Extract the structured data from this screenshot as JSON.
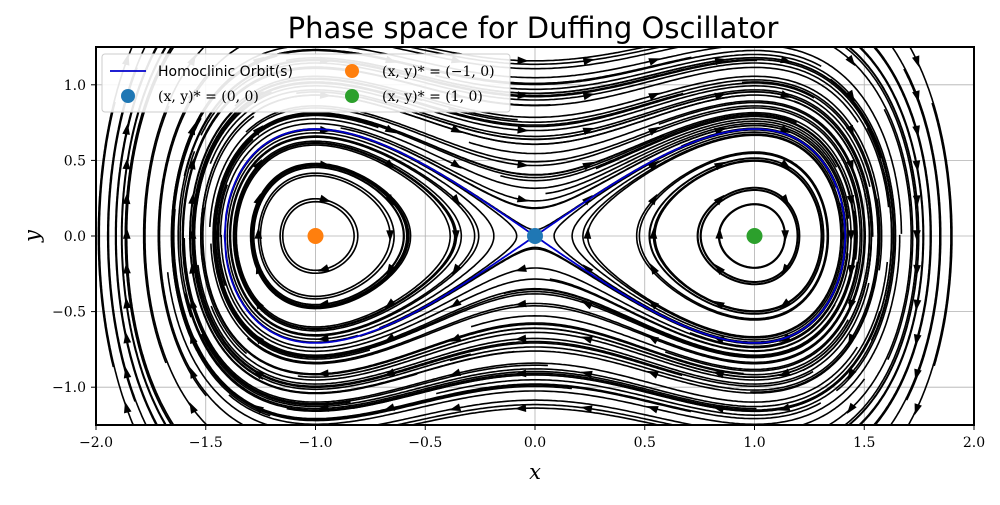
{
  "chart_data": {
    "type": "streamplot",
    "title": "Phase space for Duffing Oscillator",
    "xlabel": "x",
    "ylabel": "y",
    "xlim": [
      -2.0,
      2.0
    ],
    "ylim": [
      -1.25,
      1.25
    ],
    "grid": true,
    "x_ticks": [
      "−2.0",
      "−1.5",
      "−1.0",
      "−0.5",
      "0.0",
      "0.5",
      "1.0",
      "1.5",
      "2.0"
    ],
    "x_tick_values": [
      -2.0,
      -1.5,
      -1.0,
      -0.5,
      0.0,
      0.5,
      1.0,
      1.5,
      2.0
    ],
    "y_ticks": [
      "−1.0",
      "−0.5",
      "0.0",
      "0.5",
      "1.0"
    ],
    "y_tick_values": [
      -1.0,
      -0.5,
      0.0,
      0.5,
      1.0
    ],
    "legend_position": "top-left",
    "series": [
      {
        "name": "Homoclinic Orbit(s)",
        "kind": "line",
        "color": "#0000cc",
        "energy": 0.0
      },
      {
        "name": "(x, y)* = (0, 0)",
        "kind": "point",
        "x": 0,
        "y": 0,
        "color": "#1f77b4"
      },
      {
        "name": "(x, y)* = (−1, 0)",
        "kind": "point",
        "x": -1,
        "y": 0,
        "color": "#ff7f0e"
      },
      {
        "name": "(x, y)* = (1, 0)",
        "kind": "point",
        "x": 1,
        "y": 0,
        "color": "#2ca02c"
      }
    ],
    "streamline_color": "#000000",
    "vector_field": "dx/dt = y, dy/dt = x - x^3"
  }
}
